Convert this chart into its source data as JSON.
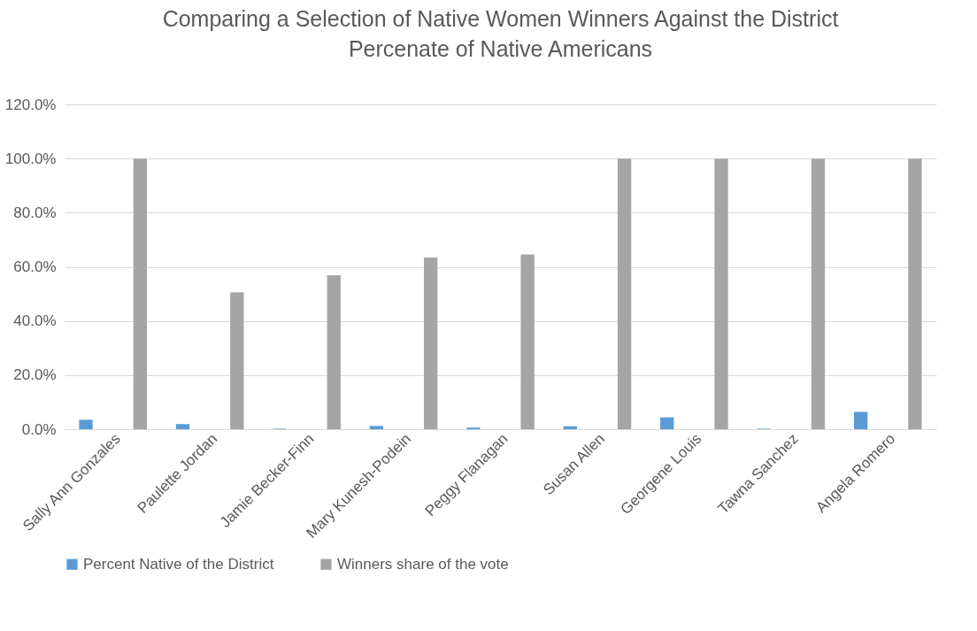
{
  "chart_data": {
    "type": "bar",
    "title": "Comparing a Selection of Native Women Winners Against the District Percenate of Native Americans",
    "categories": [
      "Sally Ann Gonzales",
      "Paulette Jordan",
      "Jamie Becker-Finn",
      "Mary Kunesh-Podein",
      "Peggy Flanagan",
      "Susan Allen",
      "Georgene Louis",
      "Tawna Sanchez",
      "Angela Romero"
    ],
    "series": [
      {
        "name": "Percent Native of the District",
        "color": "#5b9bd5",
        "values": [
          3.5,
          1.9,
          0.2,
          1.2,
          0.6,
          1.1,
          4.4,
          0.2,
          6.4
        ]
      },
      {
        "name": "Winners share of the vote",
        "color": "#a5a5a5",
        "values": [
          100,
          50.6,
          56.9,
          63.4,
          64.6,
          100,
          100,
          100,
          100
        ]
      }
    ],
    "ylim": [
      0,
      120
    ],
    "yticks": [
      {
        "value": 0,
        "label": "0.0%"
      },
      {
        "value": 20,
        "label": "20.0%"
      },
      {
        "value": 40,
        "label": "40.0%"
      },
      {
        "value": 60,
        "label": "60.0%"
      },
      {
        "value": 80,
        "label": "80.0%"
      },
      {
        "value": 100,
        "label": "100.0%"
      },
      {
        "value": 120,
        "label": "120.0%"
      }
    ],
    "grid": "y",
    "legend": "bottom"
  }
}
